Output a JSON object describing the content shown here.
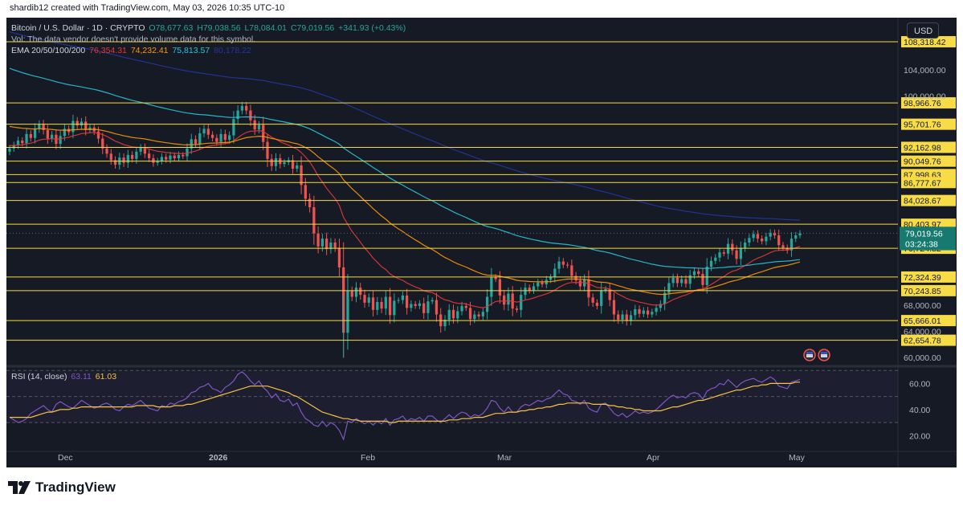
{
  "header": {
    "credit": "shardib12 created with TradingView.com, May 03, 2026 10:35 UTC-10"
  },
  "legend": {
    "symbol": "Bitcoin / U.S. Dollar · 1D · CRYPTO",
    "open": "O78,677.63",
    "high": "H79,038.56",
    "low": "L78,084.01",
    "close": "C79,019.56",
    "change": "+341.93 (+0.43%)",
    "vol_note": "Vol: The data vendor doesn't provide volume data for this symbol.",
    "ema_label": "EMA 20/50/100/200",
    "ema_values": [
      "76,354.31",
      "74,232.41",
      "75,813.57",
      "80,178.22"
    ]
  },
  "currency_button": "USD",
  "rsi_legend": {
    "label": "RSI (14, close)",
    "value1": "63.11",
    "value2": "61.03"
  },
  "footer": {
    "brand": "TradingView"
  },
  "colors": {
    "up": "#26a69a",
    "down": "#ef5350",
    "bg": "#161a25",
    "ema20": "#e53935",
    "ema50": "#ff9800",
    "ema100": "#26c6da",
    "ema200": "#2336a0",
    "level": "#f7dc45",
    "rsi": "#7e57c2",
    "rsi_ma": "#f5c242"
  },
  "chart_data": {
    "type": "candlestick",
    "symbol": "Bitcoin / U.S. Dollar",
    "interval": "1D",
    "x_ticks": [
      "Dec",
      "2026",
      "Feb",
      "Mar",
      "Apr",
      "May"
    ],
    "y_ticks": [
      "104,000.00",
      "100,000.00",
      "68,000.00",
      "64,000.00",
      "60,000.00"
    ],
    "levels": [
      {
        "value": 108318.42,
        "label": "108,318.42"
      },
      {
        "value": 98966.76,
        "label": "98,966.76"
      },
      {
        "value": 95701.76,
        "label": "95,701.76"
      },
      {
        "value": 92162.98,
        "label": "92,162.98"
      },
      {
        "value": 90049.76,
        "label": "90,049.76"
      },
      {
        "value": 87998.63,
        "label": "87,998.63"
      },
      {
        "value": 86777.67,
        "label": "86,777.67"
      },
      {
        "value": 84028.67,
        "label": "84,028.67"
      },
      {
        "value": 80403.97,
        "label": "80,403.97"
      },
      {
        "value": 76724.82,
        "label": "76,724.82"
      },
      {
        "value": 72324.39,
        "label": "72,324.39"
      },
      {
        "value": 70243.85,
        "label": "70,243.85"
      },
      {
        "value": 65666.01,
        "label": "65,666.01"
      },
      {
        "value": 62654.78,
        "label": "62,654.78"
      }
    ],
    "current_price": {
      "value": 79019.56,
      "label": "79,019.56",
      "countdown": "03:24:38"
    },
    "close_path": [
      92000,
      92500,
      93200,
      92800,
      94200,
      93600,
      95000,
      95700,
      94800,
      93500,
      94100,
      92700,
      93900,
      95000,
      94500,
      96200,
      95500,
      96100,
      94800,
      95200,
      94600,
      93500,
      92000,
      91200,
      90200,
      89500,
      90600,
      89800,
      91000,
      90400,
      91500,
      92100,
      91200,
      90500,
      89800,
      90100,
      90700,
      90300,
      90900,
      90500,
      91000,
      90800,
      92000,
      93400,
      92700,
      94300,
      95000,
      94100,
      93600,
      93000,
      94200,
      93300,
      94000,
      96500,
      97800,
      98500,
      97800,
      96300,
      94900,
      95600,
      93000,
      90400,
      89300,
      90500,
      89600,
      89900,
      90200,
      88900,
      89400,
      86400,
      84300,
      83000,
      79000,
      77000,
      78200,
      76600,
      77600,
      76800,
      73800,
      63800,
      70200,
      69300,
      70700,
      69600,
      68400,
      69200,
      67300,
      68500,
      67500,
      69300,
      66500,
      68700,
      68800,
      69500,
      67600,
      68200,
      67900,
      68300,
      66800,
      68600,
      68800,
      66600,
      64800,
      65800,
      67300,
      66000,
      67100,
      67900,
      67600,
      65900,
      66600,
      66300,
      67000,
      69300,
      72300,
      72000,
      69500,
      68100,
      69800,
      67500,
      67300,
      69600,
      70700,
      70300,
      70900,
      71500,
      71200,
      71900,
      72300,
      73600,
      74700,
      74200,
      74100,
      72500,
      71800,
      70900,
      72000,
      69200,
      68400,
      67900,
      70300,
      70500,
      68800,
      66600,
      65800,
      66600,
      65600,
      66500,
      67400,
      66700,
      67200,
      66600,
      67000,
      67600,
      68200,
      69900,
      71400,
      72200,
      71400,
      72000,
      71300,
      72600,
      73200,
      72800,
      71100,
      73900,
      74800,
      75300,
      76100,
      75900,
      77400,
      76400,
      75100,
      76800,
      77600,
      78300,
      78900,
      78200,
      77800,
      78500,
      79100,
      78700,
      77200,
      76800,
      76400,
      78200,
      78700,
      79020
    ],
    "rsi": {
      "type": "line",
      "label": "RSI (14, close)",
      "ylim": [
        14,
        72
      ],
      "y_ticks": [
        "60.00",
        "40.00",
        "20.00"
      ],
      "values": [
        34,
        32,
        30,
        31,
        33,
        37,
        39,
        41,
        43,
        40,
        38,
        44,
        46,
        44,
        42,
        41,
        44,
        47,
        45,
        43,
        41,
        42,
        44,
        45,
        43,
        40,
        39,
        42,
        44,
        43,
        45,
        47,
        44,
        41,
        40,
        39,
        43,
        42,
        45,
        44,
        46,
        47,
        49,
        53,
        54,
        57,
        58,
        60,
        56,
        55,
        53,
        57,
        59,
        62,
        67,
        69,
        66,
        62,
        59,
        62,
        57,
        54,
        49,
        52,
        47,
        46,
        48,
        43,
        45,
        38,
        33,
        31,
        28,
        27,
        31,
        27,
        30,
        28,
        24,
        17,
        31,
        30,
        33,
        31,
        29,
        31,
        28,
        31,
        29,
        33,
        28,
        32,
        33,
        35,
        31,
        33,
        32,
        34,
        31,
        35,
        35,
        32,
        30,
        33,
        36,
        33,
        36,
        38,
        37,
        34,
        36,
        35,
        37,
        41,
        47,
        46,
        41,
        38,
        42,
        38,
        38,
        42,
        44,
        43,
        45,
        47,
        46,
        48,
        49,
        52,
        55,
        52,
        51,
        47,
        46,
        44,
        47,
        41,
        39,
        38,
        44,
        45,
        41,
        37,
        35,
        37,
        34,
        36,
        39,
        37,
        38,
        37,
        38,
        40,
        43,
        46,
        49,
        51,
        49,
        50,
        49,
        52,
        53,
        52,
        48,
        54,
        56,
        57,
        60,
        59,
        63,
        60,
        57,
        60,
        62,
        63,
        64,
        62,
        61,
        63,
        65,
        63,
        58,
        57,
        56,
        61,
        62,
        63.11
      ],
      "ma_values": [
        34,
        34,
        34,
        34,
        34,
        34,
        35,
        36,
        37,
        38,
        38,
        39,
        40,
        40,
        40,
        41,
        41,
        42,
        42,
        42,
        42,
        42,
        42,
        42,
        42,
        42,
        42,
        42,
        42,
        42,
        43,
        43,
        43,
        43,
        43,
        42,
        42,
        42,
        42,
        43,
        43,
        43,
        44,
        44,
        45,
        46,
        47,
        48,
        49,
        50,
        51,
        52,
        53,
        54,
        55,
        56,
        57,
        58,
        58,
        58,
        58,
        58,
        57,
        56,
        55,
        54,
        53,
        51,
        50,
        48,
        46,
        44,
        42,
        40,
        38,
        37,
        36,
        35,
        34,
        33,
        33,
        32,
        32,
        31,
        31,
        31,
        31,
        31,
        31,
        31,
        30,
        30,
        31,
        31,
        31,
        31,
        31,
        31,
        31,
        31,
        31,
        31,
        31,
        31,
        32,
        32,
        32,
        33,
        33,
        33,
        34,
        34,
        34,
        35,
        36,
        37,
        37,
        37,
        38,
        38,
        38,
        39,
        39,
        40,
        40,
        41,
        41,
        42,
        42,
        43,
        44,
        44,
        45,
        45,
        45,
        45,
        45,
        45,
        44,
        44,
        44,
        44,
        43,
        43,
        42,
        42,
        41,
        41,
        40,
        40,
        39,
        39,
        39,
        39,
        39,
        40,
        41,
        42,
        42,
        43,
        44,
        45,
        46,
        47,
        47,
        48,
        49,
        50,
        51,
        52,
        53,
        54,
        55,
        55,
        56,
        57,
        58,
        58,
        59,
        59,
        60,
        60,
        60,
        60,
        60,
        60,
        61,
        61.03
      ]
    }
  }
}
